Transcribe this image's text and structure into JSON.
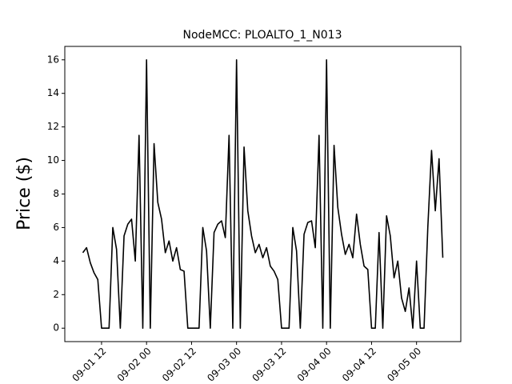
{
  "chart_data": {
    "type": "line",
    "title": "NodeMCC: PLOALTO_1_N013",
    "y_label": "Price ($)",
    "x": [
      "09-01 07",
      "09-01 08",
      "09-01 09",
      "09-01 10",
      "09-01 11",
      "09-01 12",
      "09-01 13",
      "09-01 14",
      "09-01 15",
      "09-01 16",
      "09-01 17",
      "09-01 18",
      "09-01 19",
      "09-01 20",
      "09-01 21",
      "09-01 22",
      "09-01 23",
      "09-02 00",
      "09-02 01",
      "09-02 02",
      "09-02 03",
      "09-02 04",
      "09-02 05",
      "09-02 06",
      "09-02 07",
      "09-02 08",
      "09-02 09",
      "09-02 10",
      "09-02 11",
      "09-02 12",
      "09-02 13",
      "09-02 14",
      "09-02 15",
      "09-02 16",
      "09-02 17",
      "09-02 18",
      "09-02 19",
      "09-02 20",
      "09-02 21",
      "09-02 22",
      "09-02 23",
      "09-03 00",
      "09-03 01",
      "09-03 02",
      "09-03 03",
      "09-03 04",
      "09-03 05",
      "09-03 06",
      "09-03 07",
      "09-03 08",
      "09-03 09",
      "09-03 10",
      "09-03 11",
      "09-03 12",
      "09-03 13",
      "09-03 14",
      "09-03 15",
      "09-03 16",
      "09-03 17",
      "09-03 18",
      "09-03 19",
      "09-03 20",
      "09-03 21",
      "09-03 22",
      "09-03 23",
      "09-04 00",
      "09-04 01",
      "09-04 02",
      "09-04 03",
      "09-04 04",
      "09-04 05",
      "09-04 06",
      "09-04 07",
      "09-04 08",
      "09-04 09",
      "09-04 10",
      "09-04 11",
      "09-04 12",
      "09-04 13",
      "09-04 14",
      "09-04 15",
      "09-04 16",
      "09-04 17",
      "09-04 18",
      "09-04 19",
      "09-04 20",
      "09-04 21",
      "09-04 22",
      "09-04 23",
      "09-05 00",
      "09-05 01",
      "09-05 02",
      "09-05 03",
      "09-05 04",
      "09-05 05",
      "09-05 06",
      "09-05 07"
    ],
    "values": [
      4.5,
      4.8,
      3.9,
      3.3,
      2.9,
      0,
      0,
      0,
      6.0,
      4.7,
      0,
      5.5,
      6.2,
      6.5,
      4.0,
      11.5,
      0,
      16.0,
      0,
      11.0,
      7.5,
      6.5,
      4.5,
      5.2,
      4.0,
      4.8,
      3.5,
      3.4,
      0,
      0,
      0,
      0,
      6.0,
      4.6,
      0,
      5.7,
      6.2,
      6.4,
      5.4,
      11.5,
      0,
      16.0,
      0,
      10.8,
      7.0,
      5.5,
      4.5,
      5.0,
      4.2,
      4.8,
      3.7,
      3.4,
      2.9,
      0,
      0,
      0,
      6.0,
      4.6,
      0,
      5.6,
      6.3,
      6.4,
      4.8,
      11.5,
      0,
      16.0,
      0,
      10.9,
      7.2,
      5.6,
      4.4,
      5.0,
      4.2,
      6.8,
      5.0,
      3.7,
      3.5,
      0,
      0,
      5.7,
      0,
      6.7,
      5.5,
      3.0,
      4.0,
      1.8,
      1.0,
      2.4,
      0,
      4.0,
      0,
      0,
      6.0,
      10.6,
      7.0,
      10.1,
      4.2
    ],
    "color": "#000000",
    "xticks": [
      "09-01 12",
      "09-02 00",
      "09-02 12",
      "09-03 00",
      "09-03 12",
      "09-04 00",
      "09-04 12",
      "09-05 00"
    ],
    "ylim": [
      -0.8,
      16.8
    ],
    "yticks": [
      0,
      2,
      4,
      6,
      8,
      10,
      12,
      14,
      16
    ]
  }
}
